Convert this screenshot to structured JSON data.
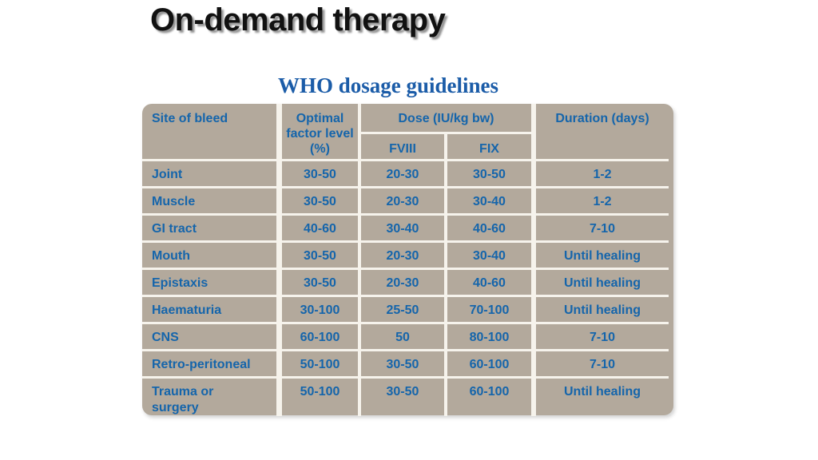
{
  "slide": {
    "title": "On-demand therapy",
    "subtitle": "WHO dosage guidelines"
  },
  "table": {
    "headers": {
      "site": "Site of bleed",
      "optimal": "Optimal factor level (%)",
      "dose_group": "Dose (IU/kg bw)",
      "fviii": "FVIII",
      "fix": "FIX",
      "duration": "Duration (days)"
    },
    "rows": [
      {
        "site": "Joint",
        "optimal": "30-50",
        "fviii": "20-30",
        "fix": "30-50",
        "duration": "1-2"
      },
      {
        "site": "Muscle",
        "optimal": "30-50",
        "fviii": "20-30",
        "fix": "30-40",
        "duration": "1-2"
      },
      {
        "site": "GI tract",
        "optimal": "40-60",
        "fviii": "30-40",
        "fix": "40-60",
        "duration": "7-10"
      },
      {
        "site": "Mouth",
        "optimal": "30-50",
        "fviii": "20-30",
        "fix": "30-40",
        "duration": "Until healing"
      },
      {
        "site": "Epistaxis",
        "optimal": "30-50",
        "fviii": "20-30",
        "fix": "40-60",
        "duration": "Until healing"
      },
      {
        "site": "Haematuria",
        "optimal": "30-100",
        "fviii": "25-50",
        "fix": "70-100",
        "duration": "Until healing"
      },
      {
        "site": "CNS",
        "optimal": "60-100",
        "fviii": "50",
        "fix": "80-100",
        "duration": "7-10"
      },
      {
        "site": "Retro-peritoneal",
        "optimal": "50-100",
        "fviii": "30-50",
        "fix": "60-100",
        "duration": "7-10"
      },
      {
        "site": "Trauma or surgery",
        "optimal": "50-100",
        "fviii": "30-50",
        "fix": "60-100",
        "duration": "Until healing"
      }
    ]
  },
  "colors": {
    "title-color": "#111111",
    "subtitle-color": "#1b5ca8",
    "table-bg": "#b3a99c",
    "cell-text": "#1565ab",
    "grid-line": "#f6f3ec"
  }
}
